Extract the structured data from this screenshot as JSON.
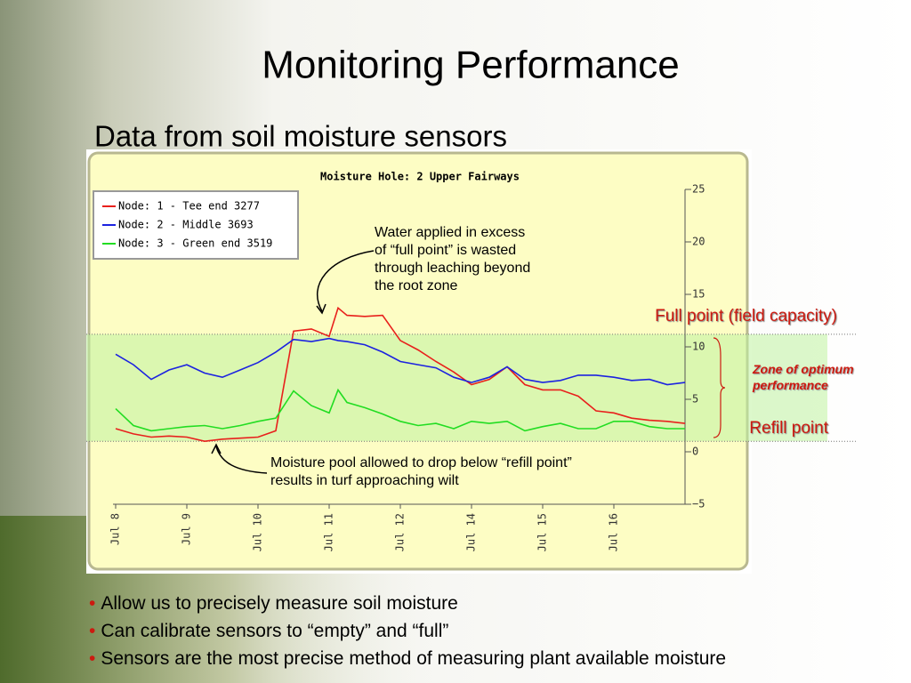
{
  "title": "Monitoring Performance",
  "subtitle": "Data from soil moisture sensors",
  "bullets": [
    "Allow us to precisely measure soil moisture",
    "Can calibrate sensors to “empty” and “full”",
    "Sensors are the most precise method of measuring plant available moisture"
  ],
  "chart_data": {
    "type": "line",
    "title": "Moisture Hole: 2 Upper Fairways",
    "x": [
      0,
      1,
      2,
      3,
      4,
      5,
      6,
      7,
      8,
      9,
      10,
      11,
      12,
      12.5,
      13,
      14,
      15,
      16,
      17,
      18,
      19,
      20,
      21,
      22,
      23,
      24,
      25,
      26,
      27,
      28,
      29,
      30,
      31,
      32
    ],
    "series": [
      {
        "name": "Node: 1 - Tee end 3277",
        "color": "#e8201c",
        "values": [
          2.2,
          1.7,
          1.4,
          1.5,
          1.4,
          1.0,
          1.2,
          1.3,
          1.4,
          2.0,
          11.5,
          11.7,
          11.0,
          13.7,
          13.0,
          12.9,
          13.0,
          10.6,
          9.7,
          8.6,
          7.6,
          6.4,
          6.9,
          8.1,
          6.4,
          5.9,
          5.9,
          5.3,
          3.9,
          3.7,
          3.2,
          3.0,
          2.9,
          2.7
        ]
      },
      {
        "name": "Node: 2 - Middle 3693",
        "color": "#1c22e0",
        "values": [
          9.3,
          8.3,
          6.9,
          7.8,
          8.3,
          7.5,
          7.1,
          7.8,
          8.5,
          9.5,
          10.7,
          10.5,
          10.8,
          10.6,
          10.5,
          10.2,
          9.5,
          8.6,
          8.3,
          8.0,
          7.1,
          6.6,
          7.1,
          8.1,
          6.9,
          6.6,
          6.8,
          7.3,
          7.3,
          7.1,
          6.8,
          6.9,
          6.4,
          6.6
        ]
      },
      {
        "name": "Node: 3 - Green end 3519",
        "color": "#22dd22",
        "values": [
          4.1,
          2.5,
          2.0,
          2.2,
          2.4,
          2.5,
          2.2,
          2.5,
          2.9,
          3.2,
          5.8,
          4.4,
          3.7,
          5.9,
          4.7,
          4.2,
          3.6,
          2.9,
          2.5,
          2.7,
          2.2,
          2.9,
          2.7,
          2.9,
          2.0,
          2.4,
          2.7,
          2.2,
          2.2,
          2.9,
          2.9,
          2.4,
          2.2,
          2.2
        ]
      }
    ],
    "xlim": [
      0,
      32
    ],
    "xticks": [
      {
        "value": 0,
        "label": "Jul 8"
      },
      {
        "value": 4,
        "label": "Jul 9"
      },
      {
        "value": 8,
        "label": "Jul 10"
      },
      {
        "value": 12,
        "label": "Jul 11"
      },
      {
        "value": 16,
        "label": "Jul 12"
      },
      {
        "value": 20,
        "label": "Jul 14"
      },
      {
        "value": 24,
        "label": "Jul 15"
      },
      {
        "value": 28,
        "label": "Jul 16"
      }
    ],
    "ylim": [
      -5,
      25
    ],
    "yticks": [
      {
        "value": -5,
        "label": "−5"
      },
      0,
      5,
      10,
      15,
      20,
      25
    ],
    "legend": "upper left",
    "reference_lines": [
      {
        "value": 11.2,
        "label": "Full point (field capacity)"
      },
      {
        "value": 1.0,
        "label": "Refill point"
      }
    ],
    "zone_label": "Zone of optimum performance",
    "annotations": [
      "Water applied in excess of “full point” is wasted through leaching beyond the root zone",
      "Moisture pool allowed to drop below “refill point” results in turf approaching wilt"
    ]
  }
}
